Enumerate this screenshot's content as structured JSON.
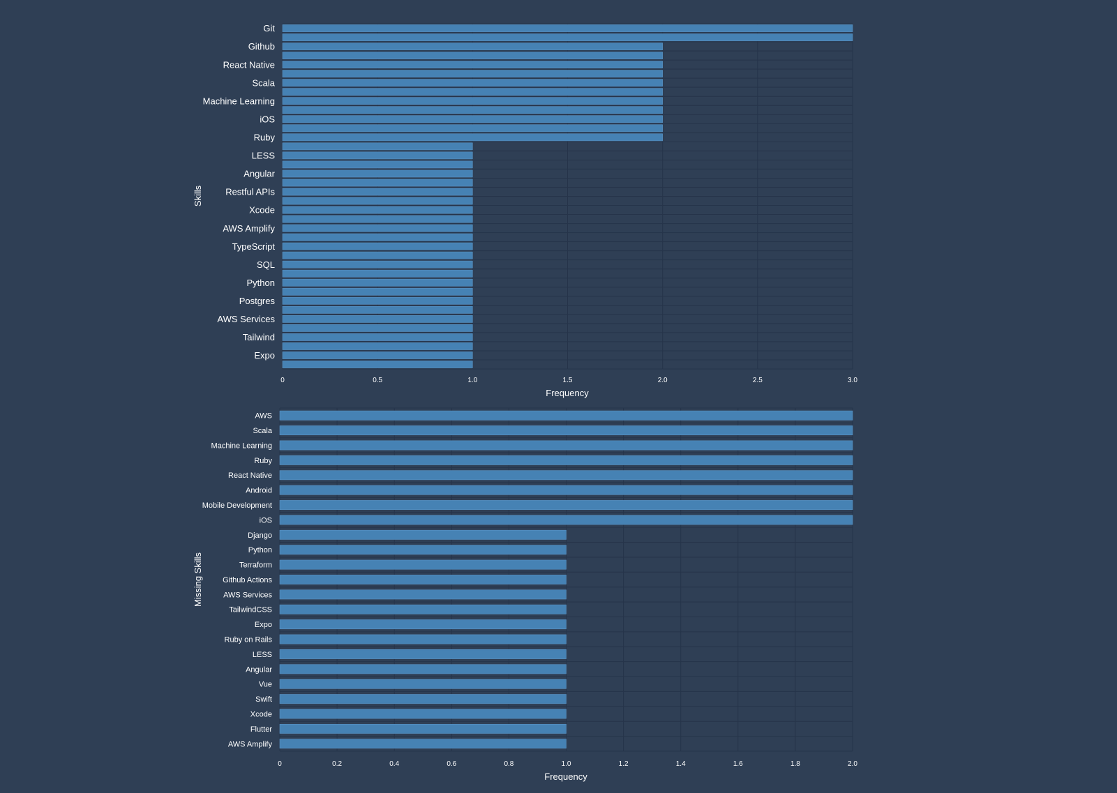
{
  "chart_data": [
    {
      "type": "bar",
      "orientation": "horizontal",
      "xlabel": "Frequency",
      "ylabel": "Skills",
      "xlim": [
        0,
        3.0
      ],
      "xticks": [
        "0",
        "0.5",
        "1.0",
        "1.5",
        "2.0",
        "2.5",
        "3.0"
      ],
      "grid": true,
      "bar_color": "#4682b4",
      "categories": [
        "Git",
        "",
        "Github",
        "",
        "React Native",
        "",
        "Scala",
        "",
        "Machine Learning",
        "",
        "iOS",
        "",
        "Ruby",
        "",
        "LESS",
        "",
        "Angular",
        "",
        "Restful APIs",
        "",
        "Xcode",
        "",
        "AWS Amplify",
        "",
        "TypeScript",
        "",
        "SQL",
        "",
        "Python",
        "",
        "Postgres",
        "",
        "AWS Services",
        "",
        "Tailwind",
        "",
        "Expo",
        ""
      ],
      "values": [
        3,
        3,
        2,
        2,
        2,
        2,
        2,
        2,
        2,
        2,
        2,
        2,
        2,
        1,
        1,
        1,
        1,
        1,
        1,
        1,
        1,
        1,
        1,
        1,
        1,
        1,
        1,
        1,
        1,
        1,
        1,
        1,
        1,
        1,
        1,
        1,
        1,
        1
      ]
    },
    {
      "type": "bar",
      "orientation": "horizontal",
      "xlabel": "Frequency",
      "ylabel": "Missing Skills",
      "xlim": [
        0,
        2.0
      ],
      "xticks": [
        "0",
        "0.2",
        "0.4",
        "0.6",
        "0.8",
        "1.0",
        "1.2",
        "1.4",
        "1.6",
        "1.8",
        "2.0"
      ],
      "grid": true,
      "bar_color": "#4682b4",
      "categories": [
        "AWS",
        "Scala",
        "Machine Learning",
        "Ruby",
        "React Native",
        "Android",
        "Mobile Development",
        "iOS",
        "Django",
        "Python",
        "Terraform",
        "Github Actions",
        "AWS Services",
        "TailwindCSS",
        "Expo",
        "Ruby on Rails",
        "LESS",
        "Angular",
        "Vue",
        "Swift",
        "Xcode",
        "Flutter",
        "AWS Amplify"
      ],
      "values": [
        2,
        2,
        2,
        2,
        2,
        2,
        2,
        2,
        1,
        1,
        1,
        1,
        1,
        1,
        1,
        1,
        1,
        1,
        1,
        1,
        1,
        1,
        1
      ]
    }
  ],
  "colors": {
    "background": "#2f3f55",
    "grid": "#26344a",
    "bar": "#4682b4",
    "bar_edge": "#5a93c4",
    "text": "#ffffff"
  }
}
